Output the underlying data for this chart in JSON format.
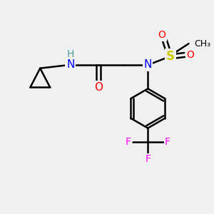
{
  "bg_color": "#f0f0f0",
  "bond_color": "#000000",
  "colors": {
    "N": "#0000ff",
    "O": "#ff0000",
    "S": "#cccc00",
    "F": "#ff00ff",
    "H": "#4a9a9a",
    "C": "#000000"
  },
  "line_width": 1.8,
  "font_size": 10
}
